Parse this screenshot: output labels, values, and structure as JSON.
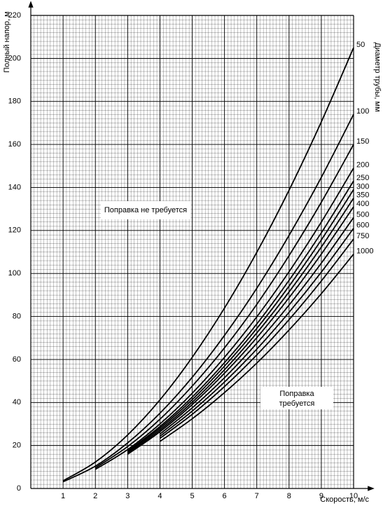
{
  "chart_data": {
    "type": "line",
    "x_label": "Скорость, м/с",
    "y_label": "Полный напор, м",
    "legend_title": "Диаметр трубы, мм",
    "annotations": [
      [
        "Поправка не требуется"
      ],
      [
        "Поправка",
        "требуется"
      ]
    ],
    "x": [
      1,
      2,
      3,
      4,
      5,
      6,
      7,
      8,
      9,
      10
    ],
    "xlim": [
      0,
      10
    ],
    "xticks": [
      1,
      2,
      3,
      4,
      5,
      6,
      7,
      8,
      9,
      10
    ],
    "ylim": [
      0,
      220
    ],
    "yticks": [
      0,
      20,
      40,
      60,
      80,
      100,
      120,
      140,
      160,
      180,
      200,
      220
    ],
    "grid": true,
    "series": [
      {
        "name": "50",
        "color": "#000000",
        "values": [
          3.6,
          12.3,
          24.9,
          41.2,
          61.0,
          83.9,
          109.8,
          138.7,
          170.5,
          205
        ]
      },
      {
        "name": "100",
        "color": "#000000",
        "values": [
          3.1,
          10.4,
          21.2,
          35.0,
          51.7,
          71.2,
          93.1,
          117.7,
          144.7,
          174
        ]
      },
      {
        "name": "150",
        "color": "#000000",
        "values": [
          null,
          9.6,
          19.5,
          32.2,
          47.6,
          65.4,
          85.6,
          108.3,
          133.1,
          160
        ]
      },
      {
        "name": "200",
        "color": "#000000",
        "values": [
          null,
          8.9,
          18.1,
          30.0,
          44.3,
          61.0,
          79.8,
          100.8,
          123.9,
          149
        ]
      },
      {
        "name": "250",
        "color": "#000000",
        "values": [
          null,
          null,
          17.4,
          28.8,
          42.5,
          58.5,
          76.5,
          96.8,
          118.9,
          143
        ]
      },
      {
        "name": "300",
        "color": "#000000",
        "values": [
          null,
          null,
          16.9,
          28.0,
          41.3,
          56.9,
          74.4,
          94.1,
          115.6,
          139
        ]
      },
      {
        "name": "350",
        "color": "#000000",
        "values": [
          null,
          null,
          16.4,
          27.2,
          40.1,
          55.2,
          72.3,
          91.4,
          112.3,
          135
        ]
      },
      {
        "name": "400",
        "color": "#000000",
        "values": [
          null,
          null,
          15.9,
          26.4,
          39.0,
          53.6,
          70.1,
          88.7,
          109.0,
          131
        ]
      },
      {
        "name": "500",
        "color": "#000000",
        "values": [
          null,
          null,
          null,
          25.3,
          37.5,
          51.5,
          67.5,
          85.3,
          104.8,
          126
        ]
      },
      {
        "name": "600",
        "color": "#000000",
        "values": [
          null,
          null,
          null,
          24.3,
          36.0,
          49.5,
          64.8,
          81.9,
          100.6,
          121
        ]
      },
      {
        "name": "750",
        "color": "#000000",
        "values": [
          null,
          null,
          null,
          23.3,
          34.5,
          47.4,
          62.1,
          78.5,
          96.5,
          116
        ]
      },
      {
        "name": "1000",
        "color": "#000000",
        "values": [
          null,
          null,
          null,
          21.9,
          32.4,
          44.6,
          58.3,
          73.7,
          90.6,
          109
        ]
      }
    ]
  }
}
